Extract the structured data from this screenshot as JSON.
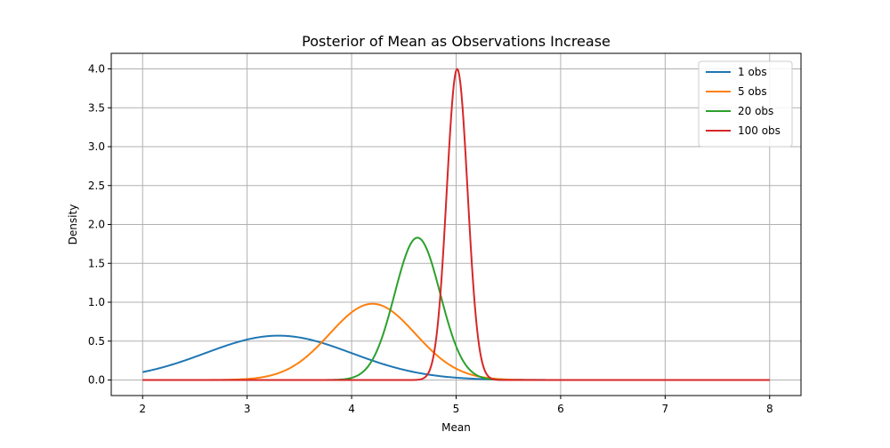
{
  "chart_data": {
    "type": "line",
    "title": "Posterior of Mean as Observations Increase",
    "xlabel": "Mean",
    "ylabel": "Density",
    "xlim": [
      1.7,
      8.3
    ],
    "ylim": [
      -0.2,
      4.2
    ],
    "xticks": [
      2,
      3,
      4,
      5,
      6,
      7,
      8
    ],
    "xtick_labels": [
      "2",
      "3",
      "4",
      "5",
      "6",
      "7",
      "8"
    ],
    "yticks": [
      0.0,
      0.5,
      1.0,
      1.5,
      2.0,
      2.5,
      3.0,
      3.5,
      4.0
    ],
    "ytick_labels": [
      "0.0",
      "0.5",
      "1.0",
      "1.5",
      "2.0",
      "2.5",
      "3.0",
      "3.5",
      "4.0"
    ],
    "grid": true,
    "legend_position": "top-right",
    "x_range": [
      2,
      8
    ],
    "series": [
      {
        "name": "1 obs",
        "color": "#1f77b4",
        "mean": 3.3,
        "sd": 0.7,
        "peak_density": 0.57
      },
      {
        "name": "5 obs",
        "color": "#ff7f0e",
        "mean": 4.2,
        "sd": 0.41,
        "peak_density": 0.98
      },
      {
        "name": "20 obs",
        "color": "#2ca02c",
        "mean": 4.63,
        "sd": 0.218,
        "peak_density": 1.83
      },
      {
        "name": "100 obs",
        "color": "#d62728",
        "mean": 5.01,
        "sd": 0.1,
        "peak_density": 4.0
      }
    ]
  }
}
